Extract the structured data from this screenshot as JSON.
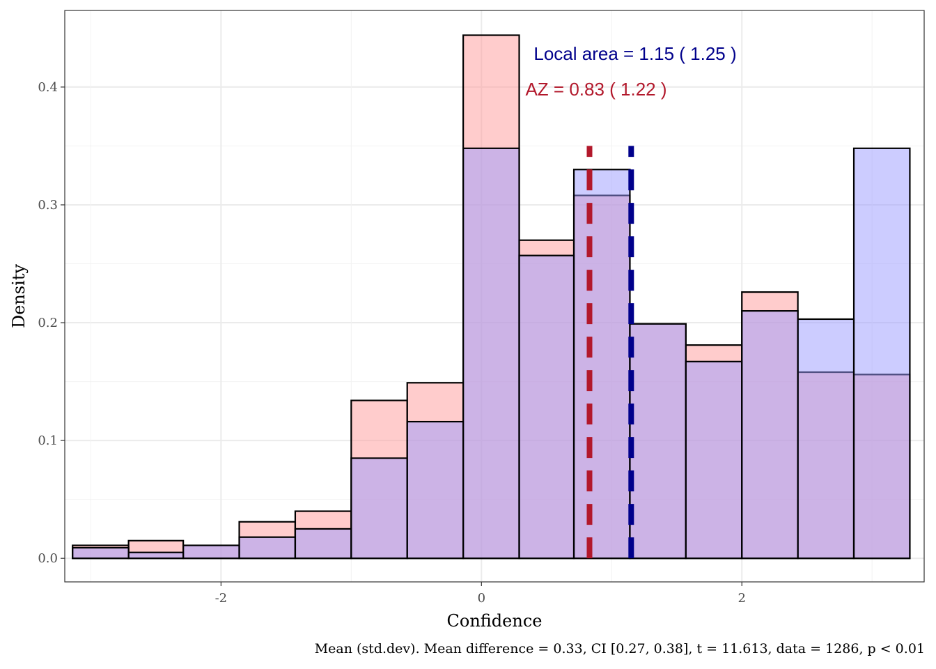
{
  "chart_data": {
    "type": "histogram",
    "xlabel": "Confidence",
    "ylabel": "Density",
    "xlim": [
      -3.2,
      3.4
    ],
    "ylim": [
      -0.02,
      0.465
    ],
    "x_ticks": [
      -2,
      0,
      2
    ],
    "x_tick_labels": [
      "-2",
      "0",
      "2"
    ],
    "y_ticks": [
      0.0,
      0.1,
      0.2,
      0.3,
      0.4
    ],
    "y_tick_labels": [
      "0.0",
      "0.1",
      "0.2",
      "0.3",
      "0.4"
    ],
    "grid": true,
    "bin_edges": [
      -3.14,
      -2.71,
      -2.29,
      -1.86,
      -1.43,
      -1.0,
      -0.57,
      -0.14,
      0.29,
      0.71,
      1.14,
      1.57,
      2.0,
      2.43,
      2.86,
      3.29
    ],
    "series": [
      {
        "color": "#FF9999",
        "values": [
          0.011,
          0.015,
          0.011,
          0.031,
          0.04,
          0.134,
          0.149,
          0.444,
          0.27,
          0.308,
          0.199,
          0.181,
          0.226,
          0.158,
          0.156
        ]
      },
      {
        "color": "#9999FF",
        "values": [
          0.009,
          0.005,
          0.011,
          0.018,
          0.025,
          0.085,
          0.116,
          0.348,
          0.257,
          0.33,
          0.199,
          0.167,
          0.21,
          0.203,
          0.348
        ]
      }
    ],
    "mean_lines": [
      {
        "x": 0.83,
        "color": "#B2182B"
      },
      {
        "x": 1.15,
        "color": "#00008B"
      }
    ],
    "annotations": [
      {
        "text": "Local area = 1.15 ( 1.25 )",
        "color": "#00008B"
      },
      {
        "text": "AZ = 0.83 ( 1.22 )",
        "color": "#B2182B"
      }
    ],
    "caption": "Mean (std.dev). Mean difference = 0.33, CI [0.27, 0.38], t = 11.613, data = 1286, p < 0.01"
  }
}
